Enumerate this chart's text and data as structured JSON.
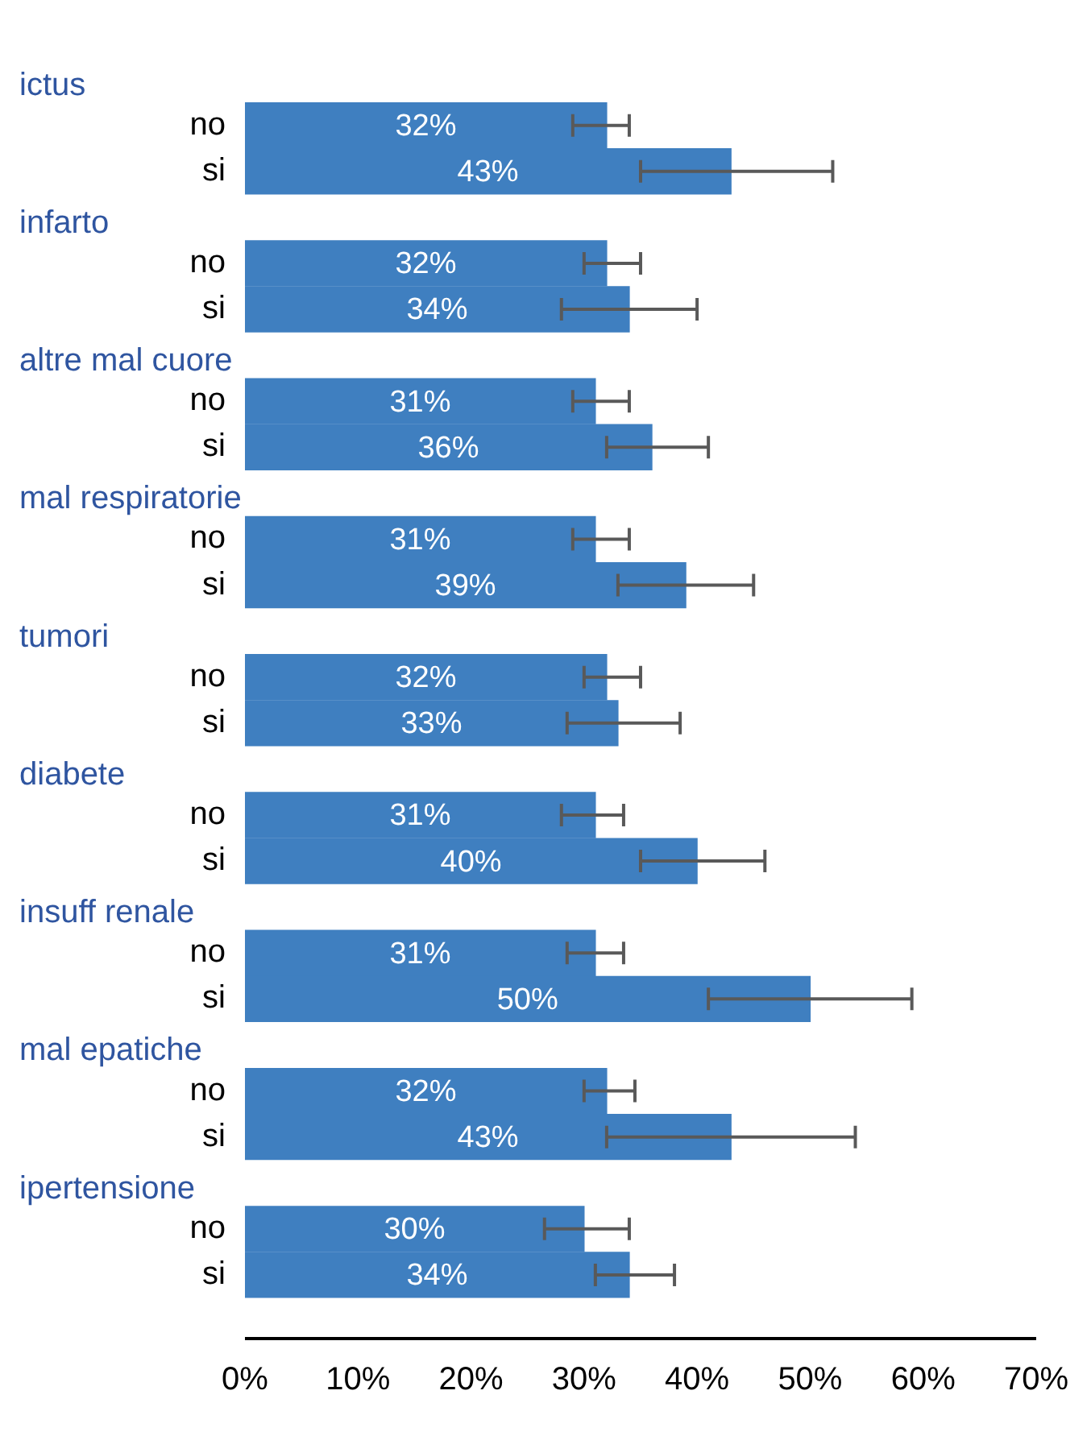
{
  "chart_data": {
    "type": "bar",
    "orientation": "horizontal",
    "categories": [
      "no",
      "si",
      "no",
      "si",
      "no",
      "si",
      "no",
      "si",
      "no",
      "si",
      "no",
      "si",
      "no",
      "si",
      "no",
      "si",
      "no",
      "si"
    ],
    "values": [
      32,
      43,
      32,
      34,
      31,
      36,
      31,
      39,
      32,
      33,
      31,
      40,
      31,
      50,
      32,
      43,
      30,
      34
    ],
    "value_labels": [
      "32%",
      "43%",
      "32%",
      "34%",
      "31%",
      "36%",
      "31%",
      "39%",
      "32%",
      "33%",
      "31%",
      "40%",
      "31%",
      "50%",
      "32%",
      "43%",
      "30%",
      "34%"
    ],
    "errors": [
      [
        29,
        34
      ],
      [
        35,
        52
      ],
      [
        30,
        35
      ],
      [
        28,
        40
      ],
      [
        29,
        34
      ],
      [
        32,
        41
      ],
      [
        29,
        34
      ],
      [
        33,
        45
      ],
      [
        30,
        35
      ],
      [
        28.5,
        38.5
      ],
      [
        28,
        33.5
      ],
      [
        35,
        46
      ],
      [
        28.5,
        33.5
      ],
      [
        41,
        59
      ],
      [
        30,
        34.5
      ],
      [
        32,
        54
      ],
      [
        26.5,
        34
      ],
      [
        31,
        38
      ]
    ],
    "color": "#3f7fc0",
    "xlim": [
      0,
      70
    ],
    "xticks": [
      {
        "value": 0,
        "label": "0%"
      },
      {
        "value": 10,
        "label": "10%"
      },
      {
        "value": 20,
        "label": "20%"
      },
      {
        "value": 30,
        "label": "30%"
      },
      {
        "value": 40,
        "label": "40%"
      },
      {
        "value": 50,
        "label": "50%"
      },
      {
        "value": 60,
        "label": "60%"
      },
      {
        "value": 70,
        "label": "70%"
      }
    ],
    "annotations": [
      "ictus",
      "infarto",
      "altre mal cuore",
      "mal respiratorie",
      "tumori",
      "diabete",
      "insuff renale",
      "mal epatiche",
      "ipertensione"
    ],
    "grid": false,
    "legend": false
  }
}
